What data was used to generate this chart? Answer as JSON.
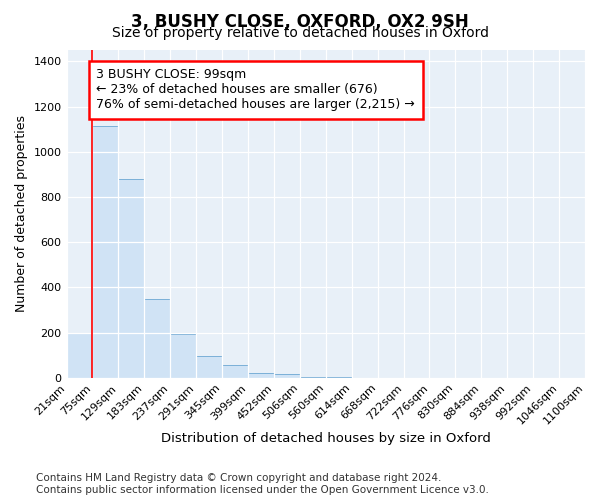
{
  "title": "3, BUSHY CLOSE, OXFORD, OX2 9SH",
  "subtitle": "Size of property relative to detached houses in Oxford",
  "xlabel": "Distribution of detached houses by size in Oxford",
  "ylabel": "Number of detached properties",
  "bar_color": "#d0e3f5",
  "bar_edge_color": "#7ab0d8",
  "bar_heights": [
    200,
    1115,
    880,
    350,
    195,
    95,
    55,
    20,
    15,
    5,
    5,
    0,
    0,
    0,
    0,
    0,
    0,
    0,
    0,
    0
  ],
  "bin_labels": [
    "21sqm",
    "75sqm",
    "129sqm",
    "183sqm",
    "237sqm",
    "291sqm",
    "345sqm",
    "399sqm",
    "452sqm",
    "506sqm",
    "560sqm",
    "614sqm",
    "668sqm",
    "722sqm",
    "776sqm",
    "830sqm",
    "884sqm",
    "938sqm",
    "992sqm",
    "1046sqm",
    "1100sqm"
  ],
  "ylim": [
    0,
    1450
  ],
  "yticks": [
    0,
    200,
    400,
    600,
    800,
    1000,
    1200,
    1400
  ],
  "property_line_x": 1.0,
  "annotation_text": "3 BUSHY CLOSE: 99sqm\n← 23% of detached houses are smaller (676)\n76% of semi-detached houses are larger (2,215) →",
  "annotation_box_color": "white",
  "annotation_box_edge": "red",
  "footer": "Contains HM Land Registry data © Crown copyright and database right 2024.\nContains public sector information licensed under the Open Government Licence v3.0.",
  "title_fontsize": 12,
  "subtitle_fontsize": 10,
  "annotation_fontsize": 9,
  "footer_fontsize": 7.5,
  "tick_labelsize": 8
}
